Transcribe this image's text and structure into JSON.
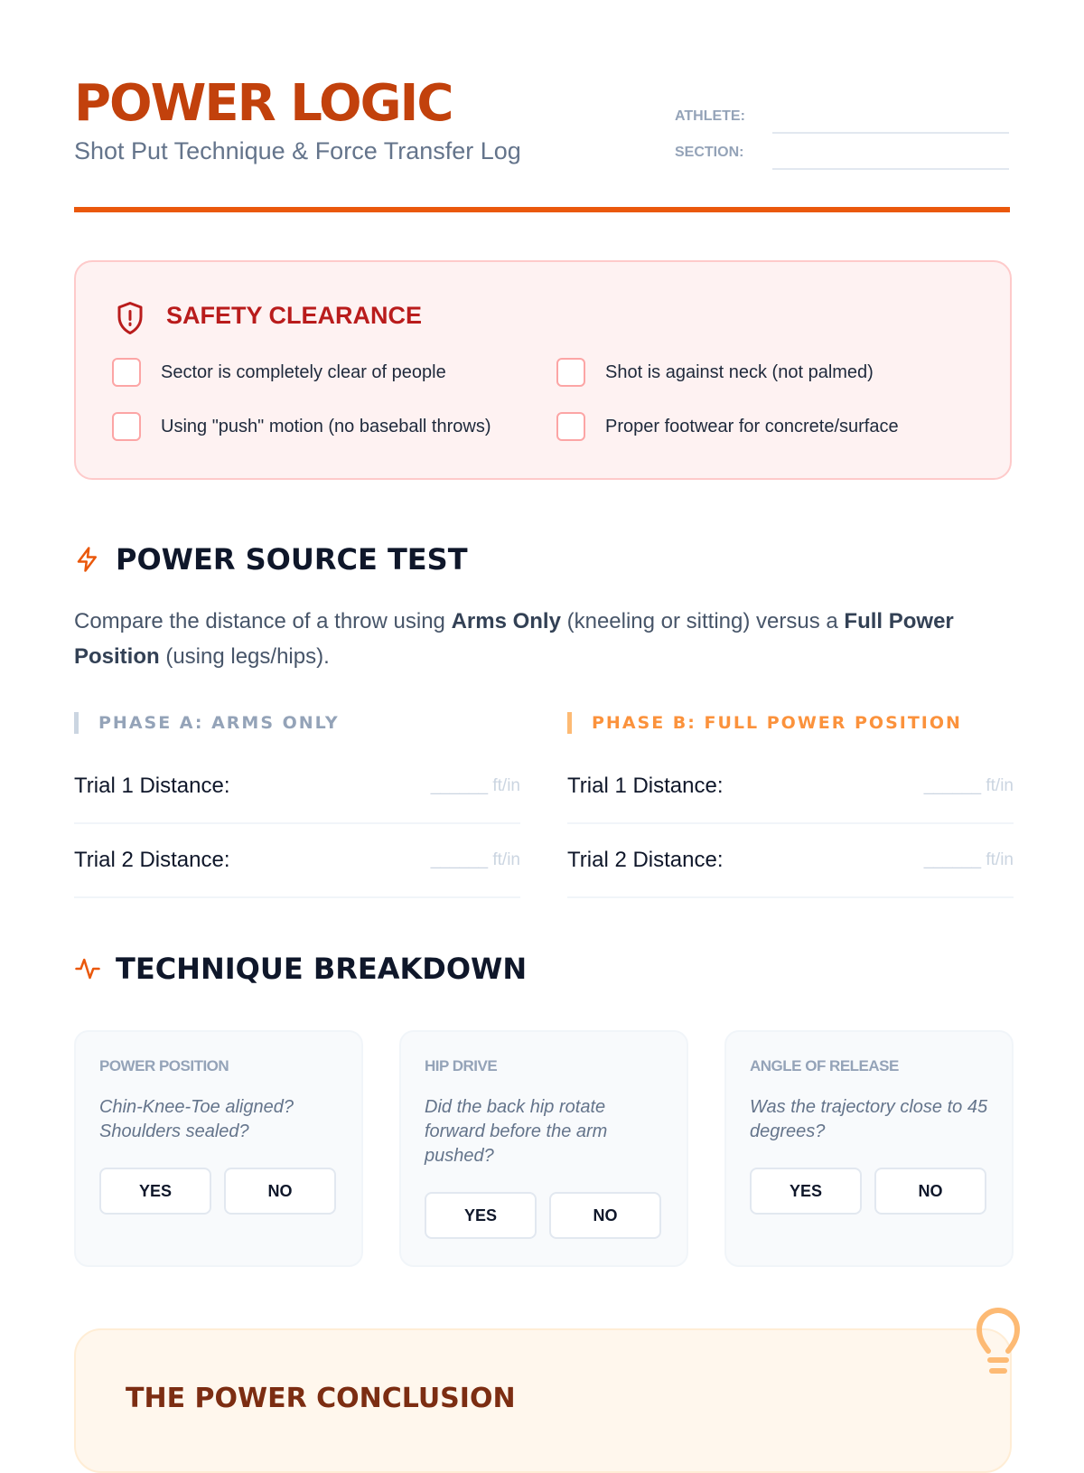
{
  "header": {
    "title": "POWER LOGIC",
    "subtitle": "Shot Put Technique & Force Transfer Log",
    "athlete_label": "ATHLETE:",
    "section_label": "SECTION:"
  },
  "colors": {
    "accent": "#ea580c",
    "title": "#c2410c",
    "safety": "#b91c1c"
  },
  "safety": {
    "title": "SAFETY CLEARANCE",
    "icon": "shield-alert-icon",
    "items": [
      "Sector is completely clear of people",
      "Shot is against neck (not palmed)",
      "Using \"push\" motion (no baseball throws)",
      "Proper footwear for concrete/surface"
    ]
  },
  "power_test": {
    "title": "POWER SOURCE TEST",
    "icon": "lightning-icon",
    "intro": {
      "p1": "Compare the distance of a throw using ",
      "b1": "Arms Only",
      "p2": " (kneeling or sitting) versus a ",
      "b2": "Full Power Position",
      "p3": " (using legs/hips)."
    },
    "phases": [
      {
        "label": "PHASE A: ARMS ONLY",
        "trials": [
          {
            "label": "Trial 1 Distance:",
            "unit": "______ ft/in"
          },
          {
            "label": "Trial 2 Distance:",
            "unit": "______ ft/in"
          }
        ]
      },
      {
        "label": "PHASE B: FULL POWER POSITION",
        "trials": [
          {
            "label": "Trial 1 Distance:",
            "unit": "______ ft/in"
          },
          {
            "label": "Trial 2 Distance:",
            "unit": "______ ft/in"
          }
        ]
      }
    ]
  },
  "technique": {
    "title": "TECHNIQUE BREAKDOWN",
    "icon": "activity-icon",
    "cards": [
      {
        "title": "POWER POSITION",
        "question": "Chin-Knee-Toe aligned? Shoulders sealed?",
        "yes": "YES",
        "no": "NO"
      },
      {
        "title": "HIP DRIVE",
        "question": "Did the back hip rotate forward before the arm pushed?",
        "yes": "YES",
        "no": "NO"
      },
      {
        "title": "ANGLE OF RELEASE",
        "question": "Was the trajectory close to 45 degrees?",
        "yes": "YES",
        "no": "NO"
      }
    ]
  },
  "conclusion": {
    "title": "THE POWER CONCLUSION",
    "icon": "lightbulb-icon"
  }
}
